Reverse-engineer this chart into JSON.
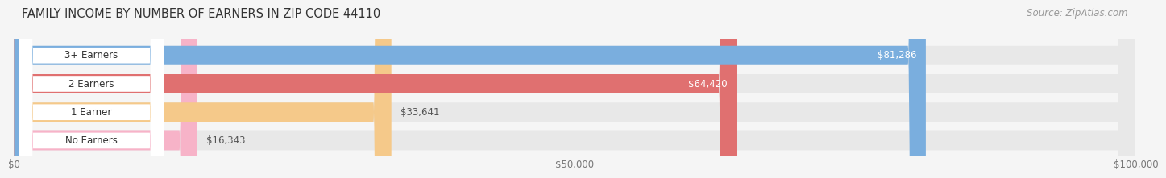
{
  "title": "FAMILY INCOME BY NUMBER OF EARNERS IN ZIP CODE 44110",
  "source": "Source: ZipAtlas.com",
  "categories": [
    "No Earners",
    "1 Earner",
    "2 Earners",
    "3+ Earners"
  ],
  "values": [
    16343,
    33641,
    64420,
    81286
  ],
  "labels": [
    "$16,343",
    "$33,641",
    "$64,420",
    "$81,286"
  ],
  "bar_colors": [
    "#f7b3c8",
    "#f5c98a",
    "#e07070",
    "#7aaede"
  ],
  "bar_bg_color": "#e8e8e8",
  "label_colors_inside": [
    "#555555",
    "#555555",
    "#ffffff",
    "#ffffff"
  ],
  "xlim": [
    0,
    100000
  ],
  "xticks": [
    0,
    50000,
    100000
  ],
  "xticklabels": [
    "$0",
    "$50,000",
    "$100,000"
  ],
  "title_fontsize": 10.5,
  "source_fontsize": 8.5,
  "bar_label_fontsize": 8.5,
  "category_fontsize": 8.5,
  "background_color": "#f5f5f5",
  "bar_height": 0.68,
  "bar_gap": 1.0,
  "pill_color": "#ffffff",
  "inside_label_threshold": 0.35
}
